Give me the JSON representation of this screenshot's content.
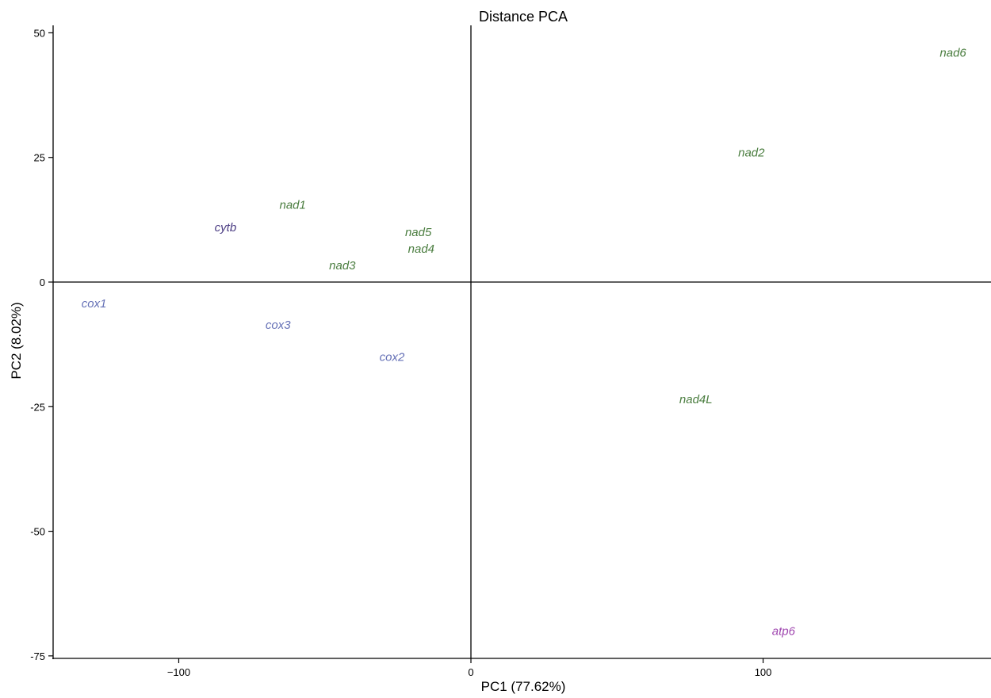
{
  "chart_data": {
    "type": "scatter",
    "title": "Distance PCA",
    "xlabel": "PC1 (77.62%)",
    "ylabel": "PC2 (8.02%)",
    "xlim": [
      -143,
      178
    ],
    "ylim": [
      -75.5,
      51.5
    ],
    "x_ticks": [
      -100,
      0,
      100
    ],
    "x_tick_labels": [
      "−100",
      "0",
      "100"
    ],
    "y_ticks": [
      50,
      25,
      0,
      -25,
      -50,
      -75
    ],
    "y_tick_labels": [
      "50",
      "25",
      "0",
      "-25",
      "-50",
      "-75"
    ],
    "reference_lines": {
      "x": 0,
      "y": 0
    },
    "grid": false,
    "legend": "none",
    "marker": "text-label",
    "colors": {
      "nad": "#4a7d3f",
      "cox": "#6470b6",
      "cytb": "#4b3c83",
      "atp": "#a048b0"
    },
    "points": [
      {
        "label": "nad6",
        "x": 165,
        "y": 46,
        "group": "nad"
      },
      {
        "label": "nad2",
        "x": 96,
        "y": 26,
        "group": "nad"
      },
      {
        "label": "nad1",
        "x": -61,
        "y": 15.5,
        "group": "nad"
      },
      {
        "label": "cytb",
        "x": -84,
        "y": 11,
        "group": "cytb"
      },
      {
        "label": "nad5",
        "x": -18,
        "y": 10,
        "group": "nad"
      },
      {
        "label": "nad4",
        "x": -17,
        "y": 6.7,
        "group": "nad"
      },
      {
        "label": "nad3",
        "x": -44,
        "y": 3.3,
        "group": "nad"
      },
      {
        "label": "cox1",
        "x": -129,
        "y": -4.3,
        "group": "cox"
      },
      {
        "label": "cox3",
        "x": -66,
        "y": -8.6,
        "group": "cox"
      },
      {
        "label": "cox2",
        "x": -27,
        "y": -15,
        "group": "cox"
      },
      {
        "label": "nad4L",
        "x": 77,
        "y": -23.5,
        "group": "nad"
      },
      {
        "label": "atp6",
        "x": 107,
        "y": -70,
        "group": "atp"
      }
    ]
  }
}
